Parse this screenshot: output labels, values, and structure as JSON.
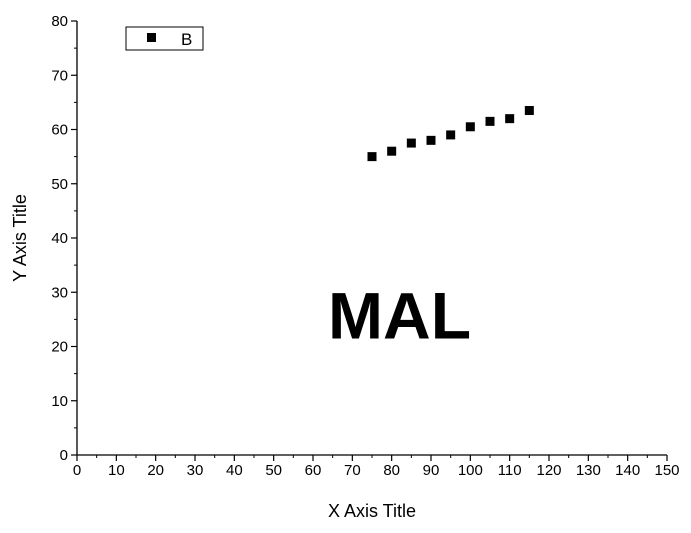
{
  "chart_data": {
    "type": "scatter",
    "title": "",
    "xlabel": "X Axis Title",
    "ylabel": "Y Axis Title",
    "xlim": [
      0,
      150
    ],
    "ylim": [
      0,
      80
    ],
    "x_ticks": [
      0,
      10,
      20,
      30,
      40,
      50,
      60,
      70,
      80,
      90,
      100,
      110,
      120,
      130,
      140,
      150
    ],
    "y_ticks": [
      0,
      10,
      20,
      30,
      40,
      50,
      60,
      70,
      80
    ],
    "grid": false,
    "legend_position": "top-left",
    "series": [
      {
        "name": "B",
        "marker": "square",
        "color": "#000000",
        "x": [
          75,
          80,
          85,
          90,
          95,
          100,
          105,
          110,
          115
        ],
        "y": [
          55,
          56,
          57.5,
          58,
          59,
          60.5,
          61.5,
          62,
          63.5
        ]
      }
    ],
    "annotations": [
      {
        "text": "MAL"
      }
    ]
  }
}
